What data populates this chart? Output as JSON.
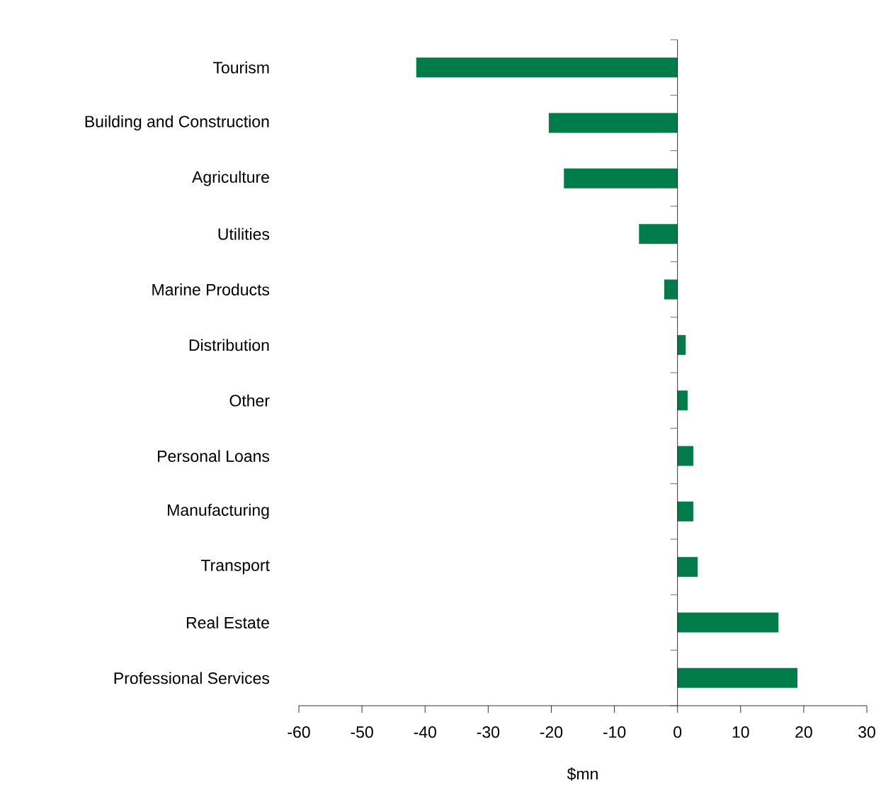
{
  "chart_data": {
    "type": "bar",
    "orientation": "horizontal",
    "xlabel": "$mn",
    "categories": [
      "Tourism",
      "Building and Construction",
      "Agriculture",
      "Utilities",
      "Marine Products",
      "Distribution",
      "Other",
      "Personal Loans",
      "Manufacturing",
      "Transport",
      "Real Estate",
      "Professional Services"
    ],
    "values": [
      -41.4,
      -20.4,
      -18.0,
      -6.1,
      -2.1,
      1.3,
      1.6,
      2.5,
      2.5,
      3.2,
      16.0,
      19.0
    ],
    "color": "#007c4a",
    "xlim": [
      -60,
      30
    ],
    "xticks": [
      -60,
      -50,
      -40,
      -30,
      -20,
      -10,
      0,
      10,
      20,
      30
    ]
  }
}
